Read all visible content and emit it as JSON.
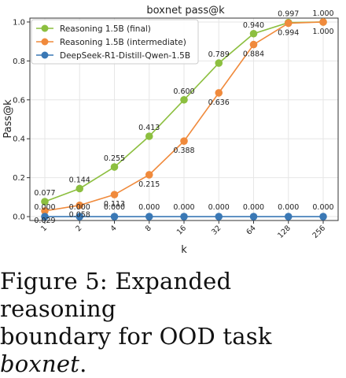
{
  "chart_data": {
    "type": "line",
    "title": "boxnet pass@k",
    "xlabel": "k",
    "ylabel": "Pass@k",
    "categories": [
      "1",
      "2",
      "4",
      "8",
      "16",
      "32",
      "64",
      "128",
      "256"
    ],
    "yticks": [
      "0.0",
      "0.2",
      "0.4",
      "0.6",
      "0.8",
      "1.0"
    ],
    "ylim": [
      -0.02,
      1.02
    ],
    "grid": true,
    "legend_position": "top-left",
    "series": [
      {
        "name": "Reasoning 1.5B (final)",
        "color": "#8cbf3f",
        "values": [
          0.077,
          0.144,
          0.255,
          0.413,
          0.6,
          0.789,
          0.94,
          0.997,
          1.0
        ],
        "labels": [
          "0.077",
          "0.144",
          "0.255",
          "0.413",
          "0.600",
          "0.789",
          "0.940",
          "0.997",
          "1.000"
        ]
      },
      {
        "name": "Reasoning 1.5B (intermediate)",
        "color": "#f08a3c",
        "values": [
          0.029,
          0.058,
          0.113,
          0.215,
          0.388,
          0.636,
          0.884,
          0.994,
          1.0
        ],
        "labels": [
          "0.029",
          "0.058",
          "0.113",
          "0.215",
          "0.388",
          "0.636",
          "0.884",
          "0.994",
          "1.000"
        ]
      },
      {
        "name": "DeepSeek-R1-Distill-Qwen-1.5B",
        "color": "#3a78b5",
        "values": [
          0.0,
          0.0,
          0.0,
          0.0,
          0.0,
          0.0,
          0.0,
          0.0,
          0.0
        ],
        "labels": [
          "0.000",
          "0.000",
          "0.000",
          "0.000",
          "0.000",
          "0.000",
          "0.000",
          "0.000",
          "0.000"
        ]
      }
    ]
  },
  "caption": {
    "line1": "Figure 5:  Expanded reasoning",
    "line2_prefix": "boundary for OOD task ",
    "line2_italic": "boxnet",
    "line2_suffix": "."
  }
}
